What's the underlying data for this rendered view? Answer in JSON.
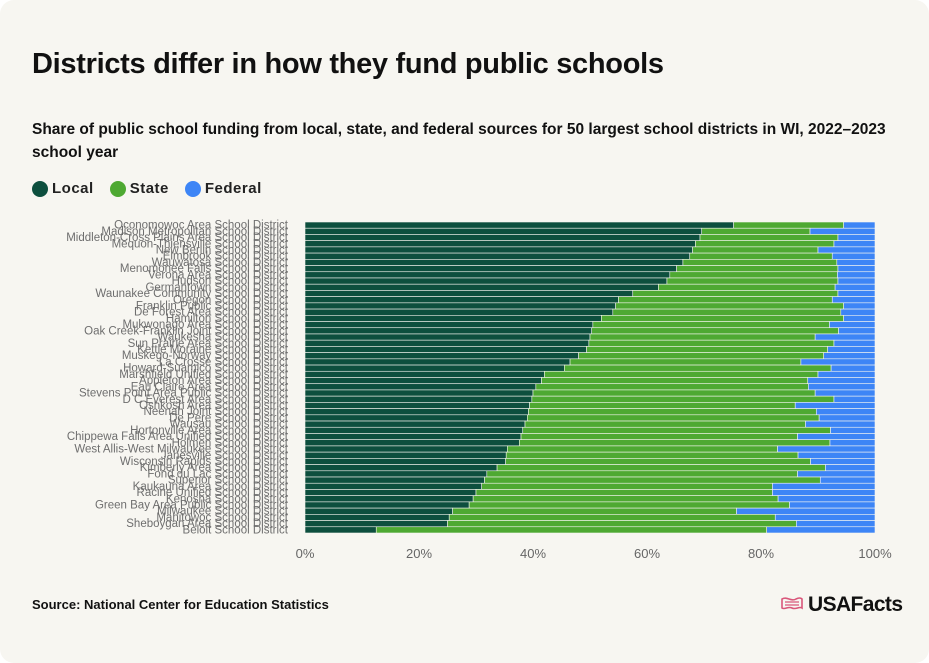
{
  "title": "Districts differ in how they fund public schools",
  "subtitle": "Share of public school funding from local, state, and federal sources for 50 largest school districts in WI, 2022–2023 school year",
  "source": "Source: National Center for Education Statistics",
  "brand": "USAFacts",
  "colors": {
    "local": "#0d4f3e",
    "state": "#4ea932",
    "federal": "#3d85f6",
    "brand_flag": "#d9567a"
  },
  "chart_data": {
    "type": "bar",
    "orientation": "horizontal",
    "stacked": true,
    "xlim": [
      0,
      100
    ],
    "x_ticks": [
      "0%",
      "20%",
      "40%",
      "60%",
      "80%",
      "100%"
    ],
    "grid": false,
    "legend_position": "top-left",
    "categories": [
      "Oconomowoc Area School District",
      "Madison Metropolitan School District",
      "Middleton-Cross Plains Area School District",
      "Mequon-Thiensville School District",
      "New Berlin School District",
      "Elmbrook School District",
      "Wauwatosa School District",
      "Menomonee Falls School District",
      "Verona Area School District",
      "Hudson School District",
      "Germantown School District",
      "Waunakee Community School District",
      "Oregon School District",
      "Franklin Public School District",
      "De Forest Area School District",
      "Hamilton School District",
      "Mukwonago Area School District",
      "Oak Creek-Franklin Joint School District",
      "Waukesha School District",
      "Sun Prairie Area School District",
      "Kettle Moraine School District",
      "Muskego-Norway School District",
      "La Crosse School District",
      "Howard-Suamico School District",
      "Marshfield Unified School District",
      "Appleton Area School District",
      "Eau Claire Area School District",
      "Stevens Point Area Public School District",
      "D C Everest Area School District",
      "Oshkosh Area School District",
      "Neenah Joint School District",
      "De Pere School District",
      "Wausau School District",
      "Hortonville Area School District",
      "Chippewa Falls Area Unified School District",
      "Holmen School District",
      "West Allis-West Milwaukee School District",
      "Janesville School District",
      "Wisconsin Rapids School District",
      "Kimberly Area School District",
      "Fond du Lac School District",
      "Superior School District",
      "Kaukauna Area School District",
      "Racine Unified School District",
      "Kenosha School District",
      "Green Bay Area Public School District",
      "Milwaukee School District",
      "Manitowoc School District",
      "Sheboygan Area School District",
      "Beloit School District"
    ],
    "series": [
      {
        "name": "Local",
        "values": [
          75.2,
          69.6,
          69.3,
          68.5,
          68.0,
          67.5,
          66.3,
          65.2,
          64.0,
          63.5,
          62.0,
          57.5,
          55.0,
          54.5,
          54.0,
          52.0,
          50.5,
          50.3,
          50.0,
          49.8,
          49.4,
          48.0,
          46.5,
          45.5,
          42.0,
          41.5,
          40.5,
          40.0,
          39.8,
          39.4,
          39.2,
          39.0,
          38.6,
          38.2,
          37.9,
          37.6,
          35.5,
          35.3,
          35.2,
          33.7,
          31.9,
          31.5,
          31.0,
          30.0,
          29.5,
          28.8,
          25.9,
          25.3,
          25.0,
          12.5
        ]
      },
      {
        "name": "State",
        "values": [
          19.3,
          19.0,
          24.2,
          24.3,
          22.0,
          25.0,
          27.0,
          28.3,
          29.4,
          30.0,
          31.0,
          36.0,
          37.5,
          40.0,
          40.0,
          42.5,
          41.5,
          43.3,
          39.5,
          43.0,
          42.3,
          43.0,
          40.5,
          46.8,
          48.0,
          46.7,
          47.8,
          49.5,
          53.0,
          46.6,
          50.5,
          51.2,
          49.2,
          54.0,
          48.5,
          54.5,
          47.4,
          51.2,
          53.5,
          57.6,
          54.5,
          58.9,
          51.0,
          52.0,
          53.5,
          56.2,
          49.8,
          57.2,
          61.2,
          68.5
        ]
      },
      {
        "name": "Federal",
        "values": [
          5.5,
          11.4,
          6.5,
          7.2,
          10.0,
          7.5,
          6.7,
          6.5,
          6.6,
          6.5,
          7.0,
          6.5,
          7.5,
          5.5,
          6.0,
          5.5,
          8.0,
          6.4,
          10.5,
          7.2,
          8.3,
          9.0,
          13.0,
          7.7,
          10.0,
          11.8,
          11.7,
          10.5,
          7.2,
          14.0,
          10.3,
          9.8,
          12.2,
          7.8,
          13.6,
          7.9,
          17.1,
          13.5,
          11.3,
          8.7,
          13.6,
          9.6,
          18.0,
          18.0,
          17.0,
          15.0,
          24.3,
          17.5,
          13.8,
          19.0
        ]
      }
    ]
  }
}
